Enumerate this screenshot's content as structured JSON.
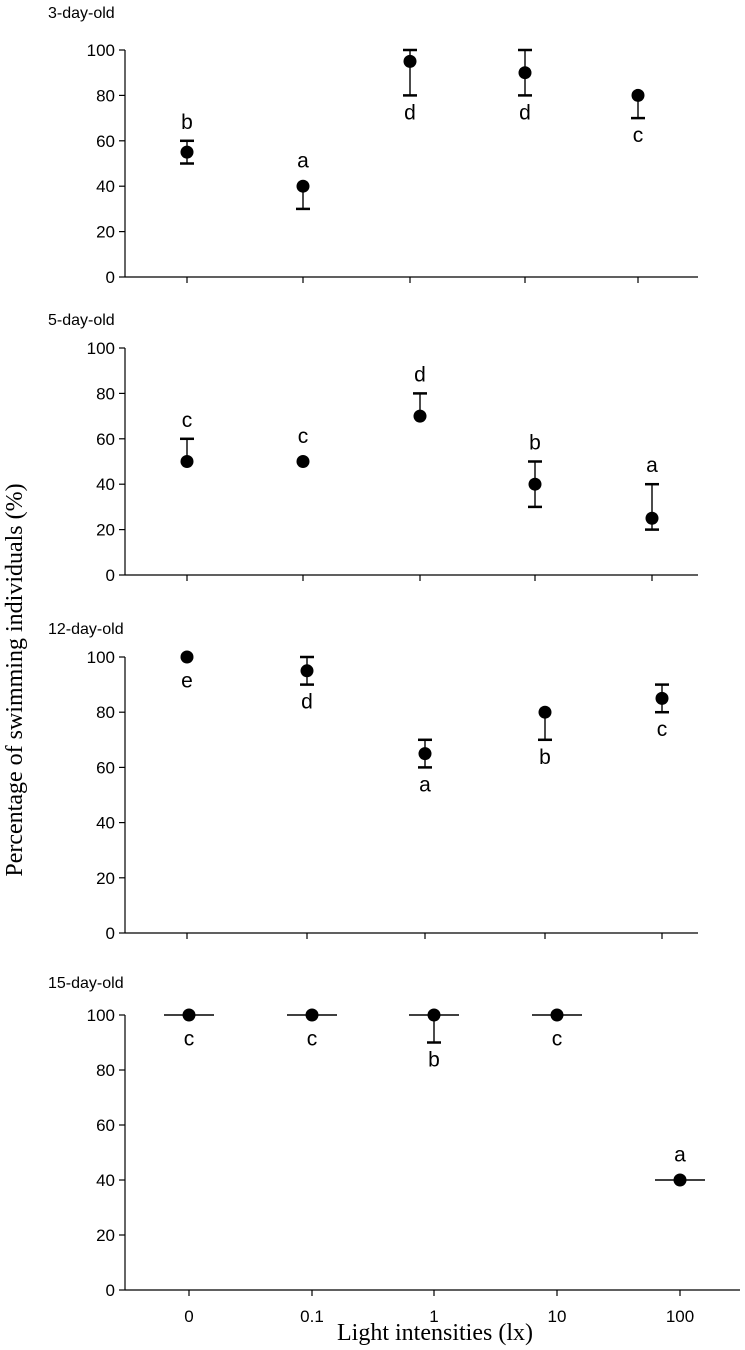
{
  "chart_data": {
    "type": "scatter",
    "title": "",
    "xlabel": "Light intensities (lx)",
    "ylabel": "Percentage of swimming individuals (%)",
    "x_categories": [
      "0",
      "0.1",
      "1",
      "10",
      "100"
    ],
    "ylim": [
      0,
      100
    ],
    "y_ticks": [
      0,
      20,
      40,
      60,
      80,
      100
    ],
    "grid": false,
    "legend": "none",
    "panels": [
      {
        "title": "3-day-old",
        "points": [
          {
            "x": "0",
            "y": 55,
            "err_low": 50,
            "err_high": 60,
            "letter": "b",
            "letter_pos": "above"
          },
          {
            "x": "0.1",
            "y": 40,
            "err_low": 30,
            "err_high": 40,
            "letter": "a",
            "letter_pos": "above"
          },
          {
            "x": "1",
            "y": 95,
            "err_low": 80,
            "err_high": 100,
            "letter": "d",
            "letter_pos": "below"
          },
          {
            "x": "10",
            "y": 90,
            "err_low": 80,
            "err_high": 100,
            "letter": "d",
            "letter_pos": "below"
          },
          {
            "x": "100",
            "y": 80,
            "err_low": 70,
            "err_high": 80,
            "letter": "c",
            "letter_pos": "below"
          }
        ]
      },
      {
        "title": "5-day-old",
        "points": [
          {
            "x": "0",
            "y": 50,
            "err_low": 50,
            "err_high": 60,
            "letter": "c",
            "letter_pos": "above"
          },
          {
            "x": "0.1",
            "y": 50,
            "err_low": 50,
            "err_high": 50,
            "letter": "c",
            "letter_pos": "above"
          },
          {
            "x": "1",
            "y": 70,
            "err_low": 70,
            "err_high": 80,
            "letter": "d",
            "letter_pos": "above"
          },
          {
            "x": "10",
            "y": 40,
            "err_low": 30,
            "err_high": 50,
            "letter": "b",
            "letter_pos": "above"
          },
          {
            "x": "100",
            "y": 25,
            "err_low": 20,
            "err_high": 40,
            "letter": "a",
            "letter_pos": "above"
          }
        ]
      },
      {
        "title": "12-day-old",
        "points": [
          {
            "x": "0",
            "y": 100,
            "err_low": 100,
            "err_high": 100,
            "letter": "e",
            "letter_pos": "below"
          },
          {
            "x": "0.1",
            "y": 95,
            "err_low": 90,
            "err_high": 100,
            "letter": "d",
            "letter_pos": "below"
          },
          {
            "x": "1",
            "y": 65,
            "err_low": 60,
            "err_high": 70,
            "letter": "a",
            "letter_pos": "below"
          },
          {
            "x": "10",
            "y": 80,
            "err_low": 70,
            "err_high": 80,
            "letter": "b",
            "letter_pos": "below"
          },
          {
            "x": "100",
            "y": 85,
            "err_low": 80,
            "err_high": 90,
            "letter": "c",
            "letter_pos": "below"
          }
        ]
      },
      {
        "title": "15-day-old",
        "points": [
          {
            "x": "0",
            "y": 100,
            "err_low": 100,
            "err_high": 100,
            "letter": "c",
            "letter_pos": "below"
          },
          {
            "x": "0.1",
            "y": 100,
            "err_low": 100,
            "err_high": 100,
            "letter": "c",
            "letter_pos": "below"
          },
          {
            "x": "1",
            "y": 100,
            "err_low": 90,
            "err_high": 100,
            "letter": "b",
            "letter_pos": "below"
          },
          {
            "x": "10",
            "y": 100,
            "err_low": 100,
            "err_high": 100,
            "letter": "c",
            "letter_pos": "below"
          },
          {
            "x": "100",
            "y": 40,
            "err_low": 40,
            "err_high": 40,
            "letter": "a",
            "letter_pos": "above"
          }
        ]
      }
    ]
  }
}
